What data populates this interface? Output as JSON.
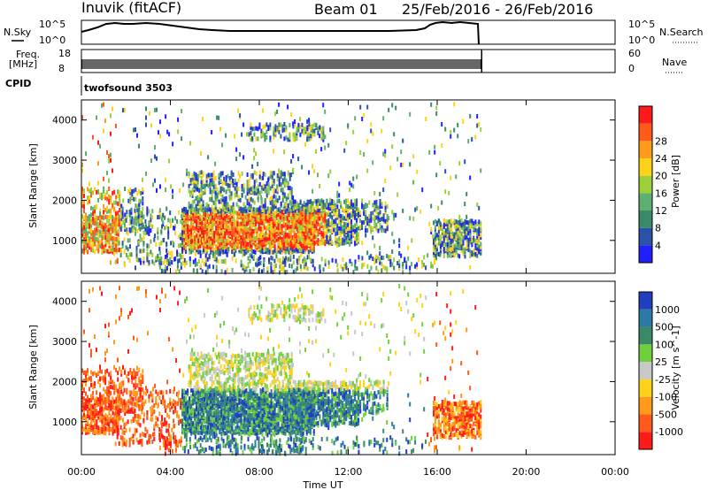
{
  "header": {
    "station": "Inuvik (fitACF)",
    "beam": "Beam 01",
    "date_range": "25/Feb/2016 - 26/Feb/2016"
  },
  "status_panels": {
    "nsky_label": "N.Sky",
    "nsearch_label": "N.Search",
    "nsky_ticks": [
      "10^5",
      "10^0"
    ],
    "nsearch_ticks": [
      "10^5",
      "10^0"
    ],
    "freq_label_1": "Freq.",
    "freq_label_2": "[MHz]",
    "freq_ticks": [
      "18",
      "8"
    ],
    "nave_label": "Nave",
    "nave_ticks": [
      "60",
      "0"
    ],
    "cpid_label": "CPID",
    "cpid_value": "twofsound 3503"
  },
  "colors": {
    "power": [
      "#1f1fff",
      "#2a52a6",
      "#3a8a6a",
      "#5fb070",
      "#9ccf3c",
      "#ffd21a",
      "#ff9a1a",
      "#ff5a1a",
      "#ff1a1a"
    ],
    "velocity": [
      "#ff1a1a",
      "#ff5a1a",
      "#ff9a1a",
      "#ffd21a",
      "#c8c8c8",
      "#6fcf3c",
      "#3a8a6a",
      "#2a7aa6",
      "#1f3fbf"
    ]
  },
  "chart_data": [
    {
      "type": "heatmap",
      "panel": "power",
      "ylabel": "Slant Range [km]",
      "yticks": [
        "1000",
        "2000",
        "3000",
        "4000"
      ],
      "ylim": [
        180,
        4500
      ],
      "xlim": [
        0,
        24
      ],
      "colorbar_label": "Power [dB]",
      "colorbar_ticks": [
        "4",
        "8",
        "12",
        "16",
        "20",
        "24",
        "28"
      ],
      "data_end_hour": 18
    },
    {
      "type": "heatmap",
      "panel": "velocity",
      "ylabel": "Slant Range [km]",
      "yticks": [
        "1000",
        "2000",
        "3000",
        "4000"
      ],
      "ylim": [
        180,
        4500
      ],
      "xlim": [
        0,
        24
      ],
      "colorbar_label": "Velocity [m s^-1]",
      "colorbar_ticks": [
        "-1000",
        "-500",
        "-100",
        "-25",
        "25",
        "100",
        "500",
        "1000"
      ],
      "data_end_hour": 18
    }
  ],
  "xaxis": {
    "label": "Time UT",
    "ticks": [
      "00:00",
      "04:00",
      "08:00",
      "12:00",
      "16:00",
      "20:00",
      "00:00"
    ]
  }
}
